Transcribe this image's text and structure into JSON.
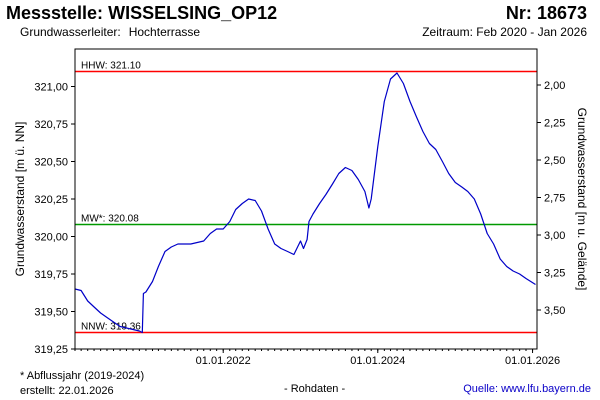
{
  "header": {
    "station_label": "Messstelle:",
    "station_name": "WISSELSING_OP12",
    "number_label": "Nr:",
    "number_value": "18673",
    "aquifer_label": "Grundwasserleiter:",
    "aquifer_value": "Hochterrasse",
    "period_label": "Zeitraum:",
    "period_value": "Feb 2020 - Jan 2026"
  },
  "footer": {
    "footnote": "* Abflussjahr (2019-2024)",
    "created_label": "erstellt:",
    "created_value": "22.01.2026",
    "rawdata": "- Rohdaten -",
    "source_label": "Quelle:",
    "source_value": "www.lfu.bayern.de"
  },
  "colors": {
    "series": "#0000c8",
    "threshold_extreme": "#ff0000",
    "threshold_mean": "#009900",
    "axis": "#000000"
  },
  "chart_data": {
    "type": "line",
    "xlabel": "",
    "ylabel": "Grundwasserstand [m ü. NN]",
    "ylabel_right": "Grundwasserstand [m u. Gelände]",
    "x_range": [
      "2020-02-01",
      "2026-01-22"
    ],
    "ylim": [
      319.25,
      321.25
    ],
    "ylim_right": [
      1.76,
      3.76
    ],
    "grid": false,
    "x_ticks": [
      {
        "date": "2022-01-01",
        "label": "01.01.2022"
      },
      {
        "date": "2024-01-01",
        "label": "01.01.2024"
      },
      {
        "date": "2026-01-01",
        "label": "01.01.2026"
      }
    ],
    "y_ticks": [
      {
        "value": 319.25,
        "label": "319,25"
      },
      {
        "value": 319.5,
        "label": "319,50"
      },
      {
        "value": 319.75,
        "label": "319,75"
      },
      {
        "value": 320.0,
        "label": "320,00"
      },
      {
        "value": 320.25,
        "label": "320,25"
      },
      {
        "value": 320.5,
        "label": "320,50"
      },
      {
        "value": 320.75,
        "label": "320,75"
      },
      {
        "value": 321.0,
        "label": "321,00"
      }
    ],
    "y_ticks_right": [
      {
        "value": 2.0,
        "label": "2,00"
      },
      {
        "value": 2.25,
        "label": "2,25"
      },
      {
        "value": 2.5,
        "label": "2,50"
      },
      {
        "value": 2.75,
        "label": "2,75"
      },
      {
        "value": 3.0,
        "label": "3,00"
      },
      {
        "value": 3.25,
        "label": "3,25"
      },
      {
        "value": 3.5,
        "label": "3,50"
      }
    ],
    "thresholds": [
      {
        "label": "HHW: 321.10",
        "value": 321.1,
        "color": "#ff0000"
      },
      {
        "label": "MW*: 320.08",
        "value": 320.08,
        "color": "#009900"
      },
      {
        "label": "NNW: 319.36",
        "value": 319.36,
        "color": "#ff0000"
      }
    ],
    "series": [
      {
        "color": "#0000c8",
        "points": [
          [
            "2020-02-01",
            319.65
          ],
          [
            "2020-03-01",
            319.64
          ],
          [
            "2020-04-01",
            319.57
          ],
          [
            "2020-05-01",
            319.53
          ],
          [
            "2020-06-01",
            319.49
          ],
          [
            "2020-07-01",
            319.46
          ],
          [
            "2020-08-01",
            319.43
          ],
          [
            "2020-09-01",
            319.4
          ],
          [
            "2020-10-01",
            319.39
          ],
          [
            "2020-11-01",
            319.38
          ],
          [
            "2020-12-01",
            319.37
          ],
          [
            "2020-12-15",
            319.36
          ],
          [
            "2020-12-20",
            319.62
          ],
          [
            "2021-01-01",
            319.63
          ],
          [
            "2021-02-01",
            319.7
          ],
          [
            "2021-03-01",
            319.8
          ],
          [
            "2021-04-01",
            319.9
          ],
          [
            "2021-05-01",
            319.93
          ],
          [
            "2021-06-01",
            319.95
          ],
          [
            "2021-08-01",
            319.95
          ],
          [
            "2021-10-01",
            319.97
          ],
          [
            "2021-11-01",
            320.02
          ],
          [
            "2021-12-01",
            320.05
          ],
          [
            "2022-01-01",
            320.05
          ],
          [
            "2022-02-01",
            320.1
          ],
          [
            "2022-03-01",
            320.18
          ],
          [
            "2022-04-01",
            320.22
          ],
          [
            "2022-05-01",
            320.25
          ],
          [
            "2022-06-01",
            320.24
          ],
          [
            "2022-07-01",
            320.17
          ],
          [
            "2022-08-01",
            320.05
          ],
          [
            "2022-09-01",
            319.95
          ],
          [
            "2022-10-01",
            319.92
          ],
          [
            "2022-11-01",
            319.9
          ],
          [
            "2022-12-01",
            319.88
          ],
          [
            "2023-01-01",
            319.97
          ],
          [
            "2023-01-15",
            319.92
          ],
          [
            "2023-02-01",
            319.98
          ],
          [
            "2023-02-10",
            320.1
          ],
          [
            "2023-03-01",
            320.15
          ],
          [
            "2023-04-01",
            320.22
          ],
          [
            "2023-05-01",
            320.28
          ],
          [
            "2023-06-01",
            320.35
          ],
          [
            "2023-07-01",
            320.42
          ],
          [
            "2023-08-01",
            320.46
          ],
          [
            "2023-09-01",
            320.44
          ],
          [
            "2023-10-01",
            320.38
          ],
          [
            "2023-11-01",
            320.3
          ],
          [
            "2023-11-20",
            320.19
          ],
          [
            "2023-12-01",
            320.25
          ],
          [
            "2024-01-01",
            320.6
          ],
          [
            "2024-02-01",
            320.9
          ],
          [
            "2024-03-01",
            321.05
          ],
          [
            "2024-04-01",
            321.09
          ],
          [
            "2024-05-01",
            321.02
          ],
          [
            "2024-06-01",
            320.9
          ],
          [
            "2024-07-01",
            320.8
          ],
          [
            "2024-08-01",
            320.7
          ],
          [
            "2024-09-01",
            320.62
          ],
          [
            "2024-10-01",
            320.58
          ],
          [
            "2024-11-01",
            320.5
          ],
          [
            "2024-12-01",
            320.42
          ],
          [
            "2025-01-01",
            320.36
          ],
          [
            "2025-02-01",
            320.33
          ],
          [
            "2025-03-01",
            320.3
          ],
          [
            "2025-04-01",
            320.25
          ],
          [
            "2025-05-01",
            320.15
          ],
          [
            "2025-06-01",
            320.02
          ],
          [
            "2025-07-01",
            319.95
          ],
          [
            "2025-08-01",
            319.85
          ],
          [
            "2025-09-01",
            319.8
          ],
          [
            "2025-10-01",
            319.77
          ],
          [
            "2025-11-01",
            319.75
          ],
          [
            "2025-12-01",
            319.72
          ],
          [
            "2026-01-15",
            319.68
          ]
        ]
      }
    ]
  }
}
